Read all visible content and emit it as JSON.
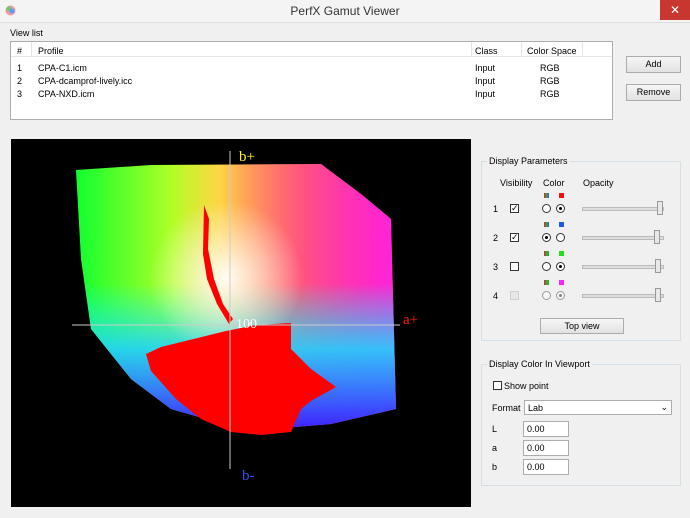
{
  "window": {
    "title": "PerfX Gamut Viewer"
  },
  "view_list": {
    "label": "View list",
    "columns": [
      "#",
      "Profile",
      "Class",
      "Color Space"
    ],
    "rows": [
      [
        "1",
        "CPA-C1.icm",
        "Input",
        "RGB"
      ],
      [
        "2",
        "CPA-dcamprof-lively.icc",
        "Input",
        "RGB"
      ],
      [
        "3",
        "CPA-NXD.icm",
        "Input",
        "RGB"
      ]
    ]
  },
  "buttons": {
    "add": "Add",
    "remove": "Remove"
  },
  "viewport": {
    "b_plus": "b+",
    "a_plus": "a+",
    "b_minus": "b-",
    "scale": "100"
  },
  "display_parameters": {
    "title": "Display Parameters",
    "columns": [
      "Visibility",
      "Color",
      "Opacity"
    ],
    "rows": [
      "1",
      "2",
      "3",
      "4"
    ],
    "button": "Top view"
  },
  "display_color": {
    "title": "Display Color In Viewport",
    "show_point": "Show point",
    "format_label": "Format",
    "format_value": "Lab",
    "fields": [
      {
        "label": "L",
        "value": "0.00"
      },
      {
        "label": "a",
        "value": "0.00"
      },
      {
        "label": "b",
        "value": "0.00"
      }
    ]
  }
}
